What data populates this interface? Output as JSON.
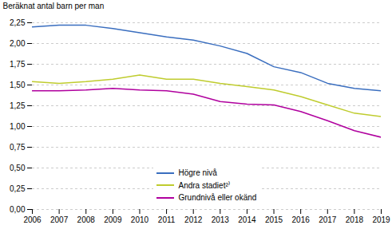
{
  "chart_data": {
    "type": "line",
    "x": [
      2006,
      2007,
      2008,
      2009,
      2010,
      2011,
      2012,
      2013,
      2014,
      2015,
      2016,
      2017,
      2018,
      2019
    ],
    "series": [
      {
        "name": "Högre nivå",
        "color": "#3A6EBF",
        "values": [
          2.2,
          2.22,
          2.22,
          2.18,
          2.13,
          2.08,
          2.04,
          1.97,
          1.88,
          1.72,
          1.65,
          1.52,
          1.46,
          1.43
        ]
      },
      {
        "name": "Andra stadiet²⁾",
        "color": "#BFCC2E",
        "values": [
          1.54,
          1.52,
          1.54,
          1.57,
          1.62,
          1.57,
          1.57,
          1.52,
          1.48,
          1.44,
          1.36,
          1.26,
          1.16,
          1.12
        ]
      },
      {
        "name": "Grundnivå eller okänd",
        "color": "#B0009E",
        "values": [
          1.43,
          1.43,
          1.44,
          1.46,
          1.44,
          1.43,
          1.39,
          1.3,
          1.27,
          1.26,
          1.18,
          1.07,
          0.95,
          0.87
        ]
      }
    ],
    "ylabel": "Beräknat antal barn per man",
    "xlim": [
      2006,
      2019
    ],
    "xticks": [
      2006,
      2007,
      2008,
      2009,
      2010,
      2011,
      2012,
      2013,
      2014,
      2015,
      2016,
      2017,
      2018,
      2019
    ],
    "ylim": [
      0,
      2.25
    ],
    "yticks": [
      {
        "value": 0,
        "label": "0,00"
      },
      {
        "value": 0.25,
        "label": "0,25"
      },
      {
        "value": 0.5,
        "label": "0,50"
      },
      {
        "value": 0.75,
        "label": "0,75"
      },
      {
        "value": 1,
        "label": "1,00"
      },
      {
        "value": 1.25,
        "label": "1,25"
      },
      {
        "value": 1.5,
        "label": "1,50"
      },
      {
        "value": 1.75,
        "label": "1,75"
      },
      {
        "value": 2,
        "label": "2,00"
      },
      {
        "value": 2.25,
        "label": "2,25"
      }
    ],
    "grid": true,
    "legend": "lower center"
  }
}
